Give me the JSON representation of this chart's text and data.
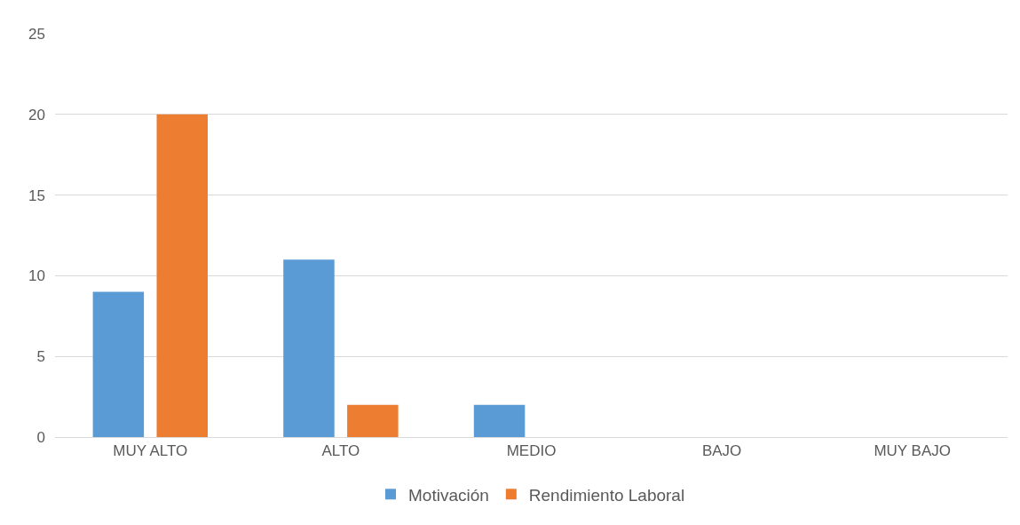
{
  "chart_data": {
    "type": "bar",
    "categories": [
      "MUY ALTO",
      "ALTO",
      "MEDIO",
      "BAJO",
      "MUY BAJO"
    ],
    "series": [
      {
        "name": "Motivación",
        "color": "#5b9bd5",
        "values": [
          9,
          11,
          2,
          0,
          0
        ]
      },
      {
        "name": "Rendimiento Laboral",
        "color": "#ed7d31",
        "values": [
          20,
          2,
          0,
          0,
          0
        ]
      }
    ],
    "ylim": [
      0,
      25
    ],
    "yticks": [
      0,
      5,
      10,
      15,
      20,
      25
    ],
    "grid": "y",
    "legend": "bottom"
  }
}
